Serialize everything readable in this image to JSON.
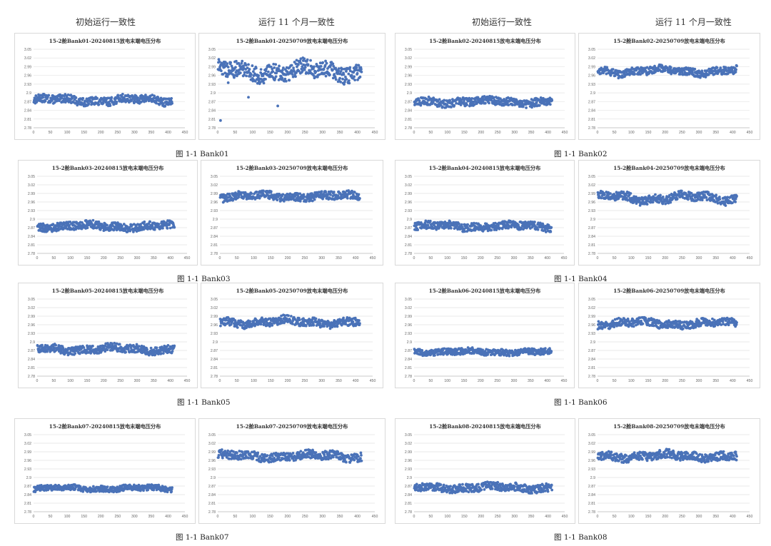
{
  "headers": {
    "initial": "初始运行一致性",
    "after11": "运行 11 个月一致性"
  },
  "chart_data": [
    {
      "id": "b01a",
      "type": "scatter",
      "title": "15-2舱Bank01-20240815放电末端电压分布",
      "ylim": [
        2.78,
        3.05
      ],
      "yticks": [
        "2.78",
        "2.81",
        "2.84",
        "2.87",
        "2.9",
        "2.93",
        "2.96",
        "2.99",
        "3.02",
        "3.05"
      ],
      "xlim": [
        0,
        450
      ],
      "xticks": [
        "0",
        "50",
        "100",
        "150",
        "200",
        "250",
        "300",
        "350",
        "400",
        "450"
      ],
      "band": {
        "center": 2.875,
        "spread": 0.014,
        "wave": 0.006
      },
      "outliers": []
    },
    {
      "id": "b01b",
      "type": "scatter",
      "title": "15-2舱Bank01-20250709放电末端电压分布",
      "ylim": [
        2.78,
        3.05
      ],
      "yticks": [
        "2.78",
        "2.81",
        "2.84",
        "2.87",
        "2.9",
        "2.93",
        "2.96",
        "2.99",
        "3.02",
        "3.05"
      ],
      "xlim": [
        0,
        450
      ],
      "xticks": [
        "0",
        "50",
        "100",
        "150",
        "200",
        "250",
        "300",
        "350",
        "400",
        "450"
      ],
      "band": {
        "center": 2.975,
        "spread": 0.028,
        "wave": 0.012
      },
      "outliers": [
        {
          "x": 8,
          "y": 2.805
        },
        {
          "x": 88,
          "y": 2.885
        },
        {
          "x": 172,
          "y": 2.855
        },
        {
          "x": 30,
          "y": 2.935
        }
      ]
    },
    {
      "id": "b02a",
      "type": "scatter",
      "title": "15-2舱Bank02-20240815放电末端电压分布",
      "ylim": [
        2.78,
        3.05
      ],
      "yticks": [
        "2.78",
        "2.81",
        "2.84",
        "2.87",
        "2.9",
        "2.93",
        "2.96",
        "2.99",
        "3.02",
        "3.05"
      ],
      "xlim": [
        0,
        450
      ],
      "xticks": [
        "0",
        "50",
        "100",
        "150",
        "200",
        "250",
        "300",
        "350",
        "400",
        "450"
      ],
      "band": {
        "center": 2.87,
        "spread": 0.014,
        "wave": 0.005
      },
      "outliers": []
    },
    {
      "id": "b02b",
      "type": "scatter",
      "title": "15-2舱Bank02-20250709放电末端电压分布",
      "ylim": [
        2.78,
        3.05
      ],
      "yticks": [
        "2.78",
        "2.81",
        "2.84",
        "2.87",
        "2.9",
        "2.93",
        "2.96",
        "2.99",
        "3.02",
        "3.05"
      ],
      "xlim": [
        0,
        450
      ],
      "xticks": [
        "0",
        "50",
        "100",
        "150",
        "200",
        "250",
        "300",
        "350",
        "400",
        "450"
      ],
      "band": {
        "center": 2.975,
        "spread": 0.013,
        "wave": 0.007
      },
      "outliers": []
    },
    {
      "id": "b03a",
      "type": "scatter",
      "title": "15-2舱Bank03-20240815放电末端电压分布",
      "ylim": [
        2.78,
        3.05
      ],
      "yticks": [
        "2.78",
        "2.81",
        "2.84",
        "2.87",
        "2.9",
        "2.93",
        "2.96",
        "2.99",
        "3.02",
        "3.05"
      ],
      "xlim": [
        0,
        450
      ],
      "xticks": [
        "0",
        "50",
        "100",
        "150",
        "200",
        "250",
        "300",
        "350",
        "400",
        "450"
      ],
      "band": {
        "center": 2.875,
        "spread": 0.014,
        "wave": 0.005
      },
      "outliers": []
    },
    {
      "id": "b03b",
      "type": "scatter",
      "title": "15-2舱Bank03-20250709放电末端电压分布",
      "ylim": [
        2.78,
        3.05
      ],
      "yticks": [
        "2.78",
        "2.81",
        "2.84",
        "2.87",
        "2.9",
        "2.93",
        "2.96",
        "2.99",
        "3.02",
        "3.05"
      ],
      "xlim": [
        0,
        450
      ],
      "xticks": [
        "0",
        "50",
        "100",
        "150",
        "200",
        "250",
        "300",
        "350",
        "400",
        "450"
      ],
      "band": {
        "center": 2.98,
        "spread": 0.014,
        "wave": 0.005
      },
      "outliers": []
    },
    {
      "id": "b04a",
      "type": "scatter",
      "title": "15-2舱Bank04-20240815放电末端电压分布",
      "ylim": [
        2.78,
        3.05
      ],
      "yticks": [
        "2.78",
        "2.81",
        "2.84",
        "2.87",
        "2.9",
        "2.93",
        "2.96",
        "2.99",
        "3.02",
        "3.05"
      ],
      "xlim": [
        0,
        450
      ],
      "xticks": [
        "0",
        "50",
        "100",
        "150",
        "200",
        "250",
        "300",
        "350",
        "400",
        "450"
      ],
      "band": {
        "center": 2.875,
        "spread": 0.014,
        "wave": 0.005
      },
      "outliers": []
    },
    {
      "id": "b04b",
      "type": "scatter",
      "title": "15-2舱Bank04-20250709放电末端电压分布",
      "ylim": [
        2.78,
        3.05
      ],
      "yticks": [
        "2.78",
        "2.81",
        "2.84",
        "2.87",
        "2.9",
        "2.93",
        "2.96",
        "2.99",
        "3.02",
        "3.05"
      ],
      "xlim": [
        0,
        450
      ],
      "xticks": [
        "0",
        "50",
        "100",
        "150",
        "200",
        "250",
        "300",
        "350",
        "400",
        "450"
      ],
      "band": {
        "center": 2.975,
        "spread": 0.015,
        "wave": 0.009
      },
      "outliers": []
    },
    {
      "id": "b05a",
      "type": "scatter",
      "title": "15-2舱Bank05-20240815放电末端电压分布",
      "ylim": [
        2.78,
        3.05
      ],
      "yticks": [
        "2.78",
        "2.81",
        "2.84",
        "2.87",
        "2.9",
        "2.93",
        "2.96",
        "2.99",
        "3.02",
        "3.05"
      ],
      "xlim": [
        0,
        450
      ],
      "xticks": [
        "0",
        "50",
        "100",
        "150",
        "200",
        "250",
        "300",
        "350",
        "400",
        "450"
      ],
      "band": {
        "center": 2.875,
        "spread": 0.014,
        "wave": 0.006
      },
      "outliers": []
    },
    {
      "id": "b05b",
      "type": "scatter",
      "title": "15-2舱Bank05-20250709放电末端电压分布",
      "ylim": [
        2.78,
        3.05
      ],
      "yticks": [
        "2.78",
        "2.81",
        "2.84",
        "2.87",
        "2.9",
        "2.93",
        "2.96",
        "2.99",
        "3.02",
        "3.05"
      ],
      "xlim": [
        0,
        450
      ],
      "xticks": [
        "0",
        "50",
        "100",
        "150",
        "200",
        "250",
        "300",
        "350",
        "400",
        "450"
      ],
      "band": {
        "center": 2.97,
        "spread": 0.014,
        "wave": 0.007
      },
      "outliers": []
    },
    {
      "id": "b06a",
      "type": "scatter",
      "title": "15-2舱Bank06-20240815放电末端电压分布",
      "ylim": [
        2.78,
        3.05
      ],
      "yticks": [
        "2.78",
        "2.81",
        "2.84",
        "2.87",
        "2.9",
        "2.93",
        "2.96",
        "2.99",
        "3.02",
        "3.05"
      ],
      "xlim": [
        0,
        450
      ],
      "xticks": [
        "0",
        "50",
        "100",
        "150",
        "200",
        "250",
        "300",
        "350",
        "400",
        "450"
      ],
      "band": {
        "center": 2.865,
        "spread": 0.011,
        "wave": 0.003
      },
      "outliers": []
    },
    {
      "id": "b06b",
      "type": "scatter",
      "title": "15-2舱Bank06-20250709放电末端电压分布",
      "ylim": [
        2.78,
        3.05
      ],
      "yticks": [
        "2.78",
        "2.81",
        "2.84",
        "2.87",
        "2.9",
        "2.93",
        "2.96",
        "2.99",
        "3.02",
        "3.05"
      ],
      "xlim": [
        0,
        450
      ],
      "xticks": [
        "0",
        "50",
        "100",
        "150",
        "200",
        "250",
        "300",
        "350",
        "400",
        "450"
      ],
      "band": {
        "center": 2.965,
        "spread": 0.014,
        "wave": 0.006
      },
      "outliers": []
    },
    {
      "id": "b07a",
      "type": "scatter",
      "title": "15-2舱Bank07-20240815放电末端电压分布",
      "ylim": [
        2.78,
        3.05
      ],
      "yticks": [
        "2.78",
        "2.81",
        "2.84",
        "2.87",
        "2.9",
        "2.93",
        "2.96",
        "2.99",
        "3.02",
        "3.05"
      ],
      "xlim": [
        0,
        450
      ],
      "xticks": [
        "0",
        "50",
        "100",
        "150",
        "200",
        "250",
        "300",
        "350",
        "400",
        "450"
      ],
      "band": {
        "center": 2.862,
        "spread": 0.01,
        "wave": 0.003
      },
      "outliers": []
    },
    {
      "id": "b07b",
      "type": "scatter",
      "title": "15-2舱Bank07-20250709放电末端电压分布",
      "ylim": [
        2.78,
        3.05
      ],
      "yticks": [
        "2.78",
        "2.81",
        "2.84",
        "2.87",
        "2.9",
        "2.93",
        "2.96",
        "2.99",
        "3.02",
        "3.05"
      ],
      "xlim": [
        0,
        450
      ],
      "xticks": [
        "0",
        "50",
        "100",
        "150",
        "200",
        "250",
        "300",
        "350",
        "400",
        "450"
      ],
      "band": {
        "center": 2.975,
        "spread": 0.015,
        "wave": 0.006
      },
      "outliers": []
    },
    {
      "id": "b08a",
      "type": "scatter",
      "title": "15-2舱Bank08-20240815放电末端电压分布",
      "ylim": [
        2.78,
        3.05
      ],
      "yticks": [
        "2.78",
        "2.81",
        "2.84",
        "2.87",
        "2.9",
        "2.93",
        "2.96",
        "2.99",
        "3.02",
        "3.05"
      ],
      "xlim": [
        0,
        450
      ],
      "xticks": [
        "0",
        "50",
        "100",
        "150",
        "200",
        "250",
        "300",
        "350",
        "400",
        "450"
      ],
      "band": {
        "center": 2.865,
        "spread": 0.014,
        "wave": 0.005
      },
      "outliers": []
    },
    {
      "id": "b08b",
      "type": "scatter",
      "title": "15-2舱Bank08-20250709放电末端电压分布",
      "ylim": [
        2.78,
        3.05
      ],
      "yticks": [
        "2.78",
        "2.81",
        "2.84",
        "2.87",
        "2.9",
        "2.93",
        "2.96",
        "2.99",
        "3.02",
        "3.05"
      ],
      "xlim": [
        0,
        450
      ],
      "xticks": [
        "0",
        "50",
        "100",
        "150",
        "200",
        "250",
        "300",
        "350",
        "400",
        "450"
      ],
      "band": {
        "center": 2.975,
        "spread": 0.015,
        "wave": 0.006
      },
      "outliers": []
    }
  ],
  "captions": {
    "bank01": "图 1-1 Bank01",
    "bank02": "图 1-1 Bank02",
    "bank03": "图 1-1 Bank03",
    "bank04": "图 1-1 Bank04",
    "bank05": "图 1-1 Bank05",
    "bank06": "图 1-1 Bank06",
    "bank07": "图 1-1 Bank07",
    "bank08": "图 1-1 Bank08"
  },
  "colors": {
    "marker": "#4a72b8",
    "grid": "#e3e3e3",
    "axis": "#bfbfbf"
  }
}
